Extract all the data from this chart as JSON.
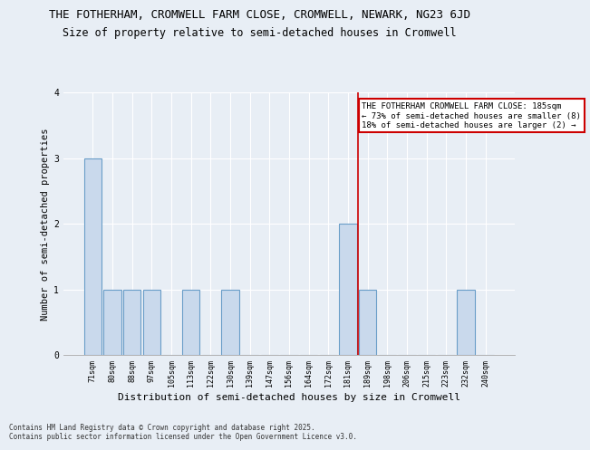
{
  "title_line1": "THE FOTHERHAM, CROMWELL FARM CLOSE, CROMWELL, NEWARK, NG23 6JD",
  "title_line2": "Size of property relative to semi-detached houses in Cromwell",
  "xlabel": "Distribution of semi-detached houses by size in Cromwell",
  "ylabel": "Number of semi-detached properties",
  "categories": [
    "71sqm",
    "80sqm",
    "88sqm",
    "97sqm",
    "105sqm",
    "113sqm",
    "122sqm",
    "130sqm",
    "139sqm",
    "147sqm",
    "156sqm",
    "164sqm",
    "172sqm",
    "181sqm",
    "189sqm",
    "198sqm",
    "206sqm",
    "215sqm",
    "223sqm",
    "232sqm",
    "240sqm"
  ],
  "values": [
    3,
    1,
    1,
    1,
    0,
    1,
    0,
    1,
    0,
    0,
    0,
    0,
    0,
    2,
    1,
    0,
    0,
    0,
    0,
    1,
    0
  ],
  "bar_color": "#c9d9ec",
  "bar_edge_color": "#6a9ec8",
  "vline_x": 13.5,
  "vline_color": "#cc0000",
  "annotation_text": "THE FOTHERHAM CROMWELL FARM CLOSE: 185sqm\n← 73% of semi-detached houses are smaller (8)\n18% of semi-detached houses are larger (2) →",
  "annotation_box_color": "#cc0000",
  "ylim": [
    0,
    4
  ],
  "yticks": [
    0,
    1,
    2,
    3,
    4
  ],
  "bg_color": "#e8eef5",
  "plot_bg_color": "#e8eef5",
  "footer_text": "Contains HM Land Registry data © Crown copyright and database right 2025.\nContains public sector information licensed under the Open Government Licence v3.0.",
  "title_fontsize": 9,
  "subtitle_fontsize": 8.5,
  "axis_label_fontsize": 7.5,
  "tick_fontsize": 6,
  "annotation_fontsize": 6.5
}
